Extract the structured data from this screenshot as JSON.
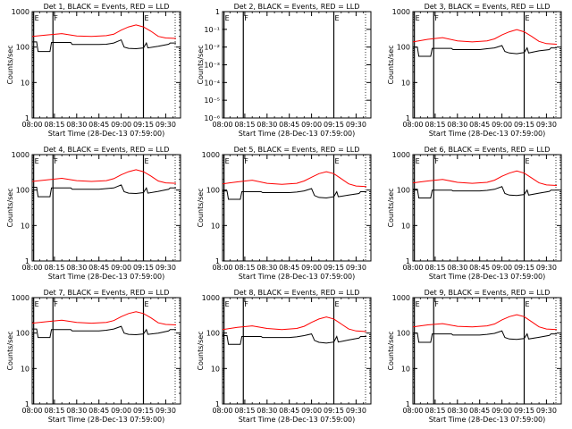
{
  "page": {
    "common_y_label": "Counts/sec",
    "common_x_label": "Start Time (28-Dec-13 07:59:00)",
    "x_tick_labels": [
      "08:00",
      "08:15",
      "08:30",
      "08:45",
      "09:00",
      "09:15",
      "09:30"
    ],
    "y_tick_labels": [
      "1",
      "10",
      "100",
      "1000"
    ],
    "y_tick_labels_det2": [
      "1",
      "10⁻¹",
      "10⁻²",
      "10⁻³",
      "10⁻⁴",
      "10⁻⁵",
      "10⁻⁶"
    ],
    "colors": {
      "events": "#000000",
      "lld": "#ff0000",
      "axes": "#000000",
      "background": "#ffffff"
    }
  },
  "chart_data": [
    {
      "type": "line",
      "detector": "Det 1",
      "title": "Det 1, BLACK = Events, RED = LLD",
      "xlabel": "Start Time (28-Dec-13 07:59:00)",
      "ylabel": "Counts/sec",
      "x_unit": "minutes after 08:00",
      "xlim": [
        0,
        100
      ],
      "ylim": [
        1,
        1000
      ],
      "yscale": "log",
      "markers": [
        {
          "label": "E",
          "x": 1
        },
        {
          "label": "F",
          "x": 14
        },
        {
          "label": "E",
          "x": 75
        }
      ],
      "series": [
        {
          "name": "Events",
          "color": "#000000",
          "x": [
            0,
            3,
            4,
            12,
            13,
            26,
            27,
            40,
            45,
            50,
            55,
            60,
            62,
            65,
            70,
            75,
            77,
            78,
            85,
            92,
            93,
            97
          ],
          "y": [
            140,
            140,
            75,
            75,
            135,
            135,
            118,
            118,
            118,
            120,
            130,
            160,
            100,
            92,
            90,
            95,
            130,
            95,
            105,
            120,
            130,
            130
          ]
        },
        {
          "name": "LLD",
          "color": "#ff0000",
          "x": [
            0,
            10,
            20,
            30,
            40,
            50,
            55,
            60,
            65,
            70,
            75,
            80,
            85,
            90,
            97
          ],
          "y": [
            200,
            220,
            240,
            205,
            200,
            210,
            230,
            300,
            370,
            420,
            370,
            280,
            200,
            180,
            175
          ]
        }
      ]
    },
    {
      "type": "line",
      "detector": "Det 2",
      "title": "Det 2, BLACK = Events, RED = LLD",
      "xlabel": "Start Time (28-Dec-13 07:59:00)",
      "ylabel": "Counts/sec",
      "x_unit": "minutes after 08:00",
      "xlim": [
        0,
        100
      ],
      "ylim": [
        1,
        1e-06
      ],
      "yscale": "log",
      "markers": [
        {
          "label": "E",
          "x": 1
        },
        {
          "label": "F",
          "x": 14
        },
        {
          "label": "E",
          "x": 75
        }
      ],
      "series": []
    },
    {
      "type": "line",
      "detector": "Det 3",
      "title": "Det 3, BLACK = Events, RED = LLD",
      "xlabel": "Start Time (28-Dec-13 07:59:00)",
      "ylabel": "Counts/sec",
      "x_unit": "minutes after 08:00",
      "xlim": [
        0,
        100
      ],
      "ylim": [
        1,
        1000
      ],
      "yscale": "log",
      "markers": [
        {
          "label": "E",
          "x": 1
        },
        {
          "label": "F",
          "x": 14
        },
        {
          "label": "E",
          "x": 75
        }
      ],
      "series": [
        {
          "name": "Events",
          "color": "#000000",
          "x": [
            0,
            3,
            4,
            12,
            13,
            26,
            27,
            40,
            45,
            50,
            55,
            60,
            62,
            65,
            70,
            75,
            77,
            78,
            85,
            92,
            93,
            97
          ],
          "y": [
            100,
            100,
            55,
            55,
            92,
            92,
            85,
            85,
            85,
            90,
            95,
            110,
            75,
            68,
            65,
            70,
            95,
            68,
            78,
            85,
            95,
            95
          ]
        },
        {
          "name": "LLD",
          "color": "#ff0000",
          "x": [
            0,
            10,
            20,
            30,
            40,
            50,
            55,
            60,
            65,
            70,
            75,
            80,
            85,
            90,
            97
          ],
          "y": [
            140,
            165,
            185,
            150,
            140,
            150,
            170,
            220,
            270,
            310,
            270,
            200,
            145,
            125,
            120
          ]
        }
      ]
    },
    {
      "type": "line",
      "detector": "Det 4",
      "title": "Det 4, BLACK = Events, RED = LLD",
      "xlabel": "Start Time (28-Dec-13 07:59:00)",
      "ylabel": "Counts/sec",
      "x_unit": "minutes after 08:00",
      "xlim": [
        0,
        100
      ],
      "ylim": [
        1,
        1000
      ],
      "yscale": "log",
      "markers": [
        {
          "label": "E",
          "x": 1
        },
        {
          "label": "F",
          "x": 14
        },
        {
          "label": "E",
          "x": 75
        }
      ],
      "series": [
        {
          "name": "Events",
          "color": "#000000",
          "x": [
            0,
            3,
            4,
            12,
            13,
            26,
            27,
            40,
            45,
            50,
            55,
            60,
            62,
            65,
            70,
            75,
            77,
            78,
            85,
            92,
            93,
            97
          ],
          "y": [
            120,
            120,
            65,
            65,
            115,
            115,
            105,
            105,
            105,
            110,
            115,
            140,
            90,
            82,
            80,
            85,
            115,
            82,
            92,
            105,
            115,
            115
          ]
        },
        {
          "name": "LLD",
          "color": "#ff0000",
          "x": [
            0,
            10,
            20,
            30,
            40,
            50,
            55,
            60,
            65,
            70,
            75,
            80,
            85,
            90,
            97
          ],
          "y": [
            175,
            195,
            215,
            185,
            175,
            185,
            210,
            270,
            330,
            375,
            330,
            250,
            180,
            160,
            155
          ]
        }
      ]
    },
    {
      "type": "line",
      "detector": "Det 5",
      "title": "Det 5, BLACK = Events, RED = LLD",
      "xlabel": "Start Time (28-Dec-13 07:59:00)",
      "ylabel": "Counts/sec",
      "x_unit": "minutes after 08:00",
      "xlim": [
        0,
        100
      ],
      "ylim": [
        1,
        1000
      ],
      "yscale": "log",
      "markers": [
        {
          "label": "E",
          "x": 1
        },
        {
          "label": "F",
          "x": 14
        },
        {
          "label": "E",
          "x": 75
        }
      ],
      "series": [
        {
          "name": "Events",
          "color": "#000000",
          "x": [
            0,
            3,
            4,
            12,
            13,
            26,
            27,
            40,
            45,
            50,
            55,
            60,
            62,
            65,
            70,
            75,
            77,
            78,
            85,
            92,
            93,
            97
          ],
          "y": [
            95,
            95,
            55,
            55,
            90,
            90,
            85,
            85,
            85,
            88,
            95,
            110,
            70,
            62,
            60,
            65,
            90,
            65,
            72,
            80,
            90,
            90
          ]
        },
        {
          "name": "LLD",
          "color": "#ff0000",
          "x": [
            0,
            10,
            20,
            30,
            40,
            50,
            55,
            60,
            65,
            70,
            75,
            80,
            85,
            90,
            97
          ],
          "y": [
            150,
            170,
            190,
            155,
            145,
            155,
            180,
            230,
            290,
            330,
            290,
            210,
            150,
            130,
            125
          ]
        }
      ]
    },
    {
      "type": "line",
      "detector": "Det 6",
      "title": "Det 6, BLACK = Events, RED = LLD",
      "xlabel": "Start Time (28-Dec-13 07:59:00)",
      "ylabel": "Counts/sec",
      "x_unit": "minutes after 08:00",
      "xlim": [
        0,
        100
      ],
      "ylim": [
        1,
        1000
      ],
      "yscale": "log",
      "markers": [
        {
          "label": "E",
          "x": 1
        },
        {
          "label": "F",
          "x": 14
        },
        {
          "label": "E",
          "x": 75
        }
      ],
      "series": [
        {
          "name": "Events",
          "color": "#000000",
          "x": [
            0,
            3,
            4,
            12,
            13,
            26,
            27,
            40,
            45,
            50,
            55,
            60,
            62,
            65,
            70,
            75,
            77,
            78,
            85,
            92,
            93,
            97
          ],
          "y": [
            105,
            105,
            60,
            60,
            100,
            100,
            95,
            95,
            95,
            98,
            105,
            125,
            80,
            72,
            70,
            75,
            100,
            72,
            82,
            92,
            100,
            100
          ]
        },
        {
          "name": "LLD",
          "color": "#ff0000",
          "x": [
            0,
            10,
            20,
            30,
            40,
            50,
            55,
            60,
            65,
            70,
            75,
            80,
            85,
            90,
            97
          ],
          "y": [
            160,
            180,
            200,
            165,
            155,
            165,
            190,
            245,
            300,
            345,
            300,
            220,
            160,
            140,
            135
          ]
        }
      ]
    },
    {
      "type": "line",
      "detector": "Det 7",
      "title": "Det 7, BLACK = Events, RED = LLD",
      "xlabel": "Start Time (28-Dec-13 07:59:00)",
      "ylabel": "Counts/sec",
      "x_unit": "minutes after 08:00",
      "xlim": [
        0,
        100
      ],
      "ylim": [
        1,
        1000
      ],
      "yscale": "log",
      "markers": [
        {
          "label": "E",
          "x": 1
        },
        {
          "label": "F",
          "x": 14
        },
        {
          "label": "E",
          "x": 75
        }
      ],
      "series": [
        {
          "name": "Events",
          "color": "#000000",
          "x": [
            0,
            3,
            4,
            12,
            13,
            26,
            27,
            40,
            45,
            50,
            55,
            60,
            62,
            65,
            70,
            75,
            77,
            78,
            85,
            92,
            93,
            97
          ],
          "y": [
            130,
            130,
            75,
            75,
            125,
            125,
            115,
            115,
            115,
            120,
            130,
            155,
            100,
            92,
            90,
            95,
            125,
            92,
            100,
            115,
            125,
            125
          ]
        },
        {
          "name": "LLD",
          "color": "#ff0000",
          "x": [
            0,
            10,
            20,
            30,
            40,
            50,
            55,
            60,
            65,
            70,
            75,
            80,
            85,
            90,
            97
          ],
          "y": [
            190,
            210,
            230,
            200,
            190,
            200,
            225,
            290,
            355,
            400,
            355,
            270,
            195,
            175,
            170
          ]
        }
      ]
    },
    {
      "type": "line",
      "detector": "Det 8",
      "title": "Det 8, BLACK = Events, RED = LLD",
      "xlabel": "Start Time (28-Dec-13 07:59:00)",
      "ylabel": "Counts/sec",
      "x_unit": "minutes after 08:00",
      "xlim": [
        0,
        100
      ],
      "ylim": [
        1,
        1000
      ],
      "yscale": "log",
      "markers": [
        {
          "label": "E",
          "x": 1
        },
        {
          "label": "F",
          "x": 14
        },
        {
          "label": "E",
          "x": 75
        }
      ],
      "series": [
        {
          "name": "Events",
          "color": "#000000",
          "x": [
            0,
            3,
            4,
            12,
            13,
            26,
            27,
            40,
            45,
            50,
            55,
            60,
            62,
            65,
            70,
            75,
            77,
            78,
            85,
            92,
            93,
            97
          ],
          "y": [
            85,
            85,
            48,
            48,
            80,
            80,
            75,
            75,
            75,
            78,
            85,
            95,
            62,
            55,
            52,
            56,
            80,
            56,
            64,
            72,
            80,
            80
          ]
        },
        {
          "name": "LLD",
          "color": "#ff0000",
          "x": [
            0,
            10,
            20,
            30,
            40,
            50,
            55,
            60,
            65,
            70,
            75,
            80,
            85,
            90,
            97
          ],
          "y": [
            125,
            145,
            160,
            135,
            125,
            135,
            155,
            200,
            250,
            285,
            250,
            180,
            130,
            115,
            110
          ]
        }
      ]
    },
    {
      "type": "line",
      "detector": "Det 9",
      "title": "Det 9, BLACK = Events, RED = LLD",
      "xlabel": "Start Time (28-Dec-13 07:59:00)",
      "ylabel": "Counts/sec",
      "x_unit": "minutes after 08:00",
      "xlim": [
        0,
        100
      ],
      "ylim": [
        1,
        1000
      ],
      "yscale": "log",
      "markers": [
        {
          "label": "E",
          "x": 1
        },
        {
          "label": "F",
          "x": 14
        },
        {
          "label": "E",
          "x": 75
        }
      ],
      "series": [
        {
          "name": "Events",
          "color": "#000000",
          "x": [
            0,
            3,
            4,
            12,
            13,
            26,
            27,
            40,
            45,
            50,
            55,
            60,
            62,
            65,
            70,
            75,
            77,
            78,
            85,
            92,
            93,
            97
          ],
          "y": [
            100,
            100,
            55,
            55,
            95,
            95,
            88,
            88,
            88,
            92,
            98,
            115,
            75,
            68,
            66,
            70,
            95,
            68,
            76,
            86,
            95,
            95
          ]
        },
        {
          "name": "LLD",
          "color": "#ff0000",
          "x": [
            0,
            10,
            20,
            30,
            40,
            50,
            55,
            60,
            65,
            70,
            75,
            80,
            85,
            90,
            97
          ],
          "y": [
            150,
            170,
            185,
            155,
            150,
            160,
            180,
            235,
            290,
            330,
            290,
            210,
            150,
            130,
            125
          ]
        }
      ]
    }
  ]
}
